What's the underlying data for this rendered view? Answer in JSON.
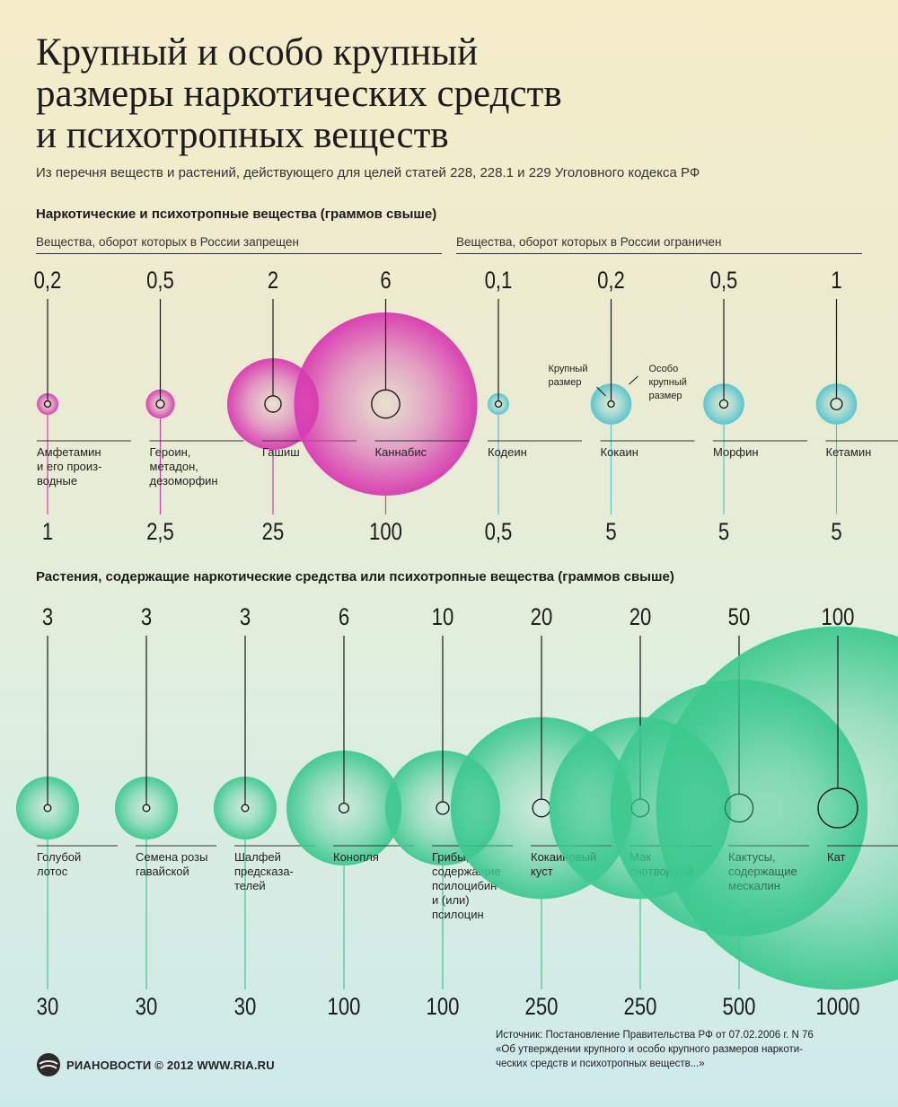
{
  "title_lines": [
    "Крупный и особо крупный",
    "размеры наркотических средств",
    "и психотропных веществ"
  ],
  "subtitle": "Из перечня веществ и растений, действующего для целей статей 228, 228.1 и 229 Уголовного кодекса РФ",
  "section1": {
    "heading": "Наркотические и психотропные вещества (граммов свыше)",
    "group_banned": "Вещества, оборот которых в России запрещен",
    "group_restricted": "Вещества, оборот которых в России ограничен"
  },
  "section2": {
    "heading": "Растения, содержащие наркотические средства или психотропные вещества (граммов свыше)"
  },
  "legend": {
    "large": [
      "Крупный",
      "размер"
    ],
    "especially_large": [
      "Особо",
      "крупный",
      "размер"
    ]
  },
  "colors": {
    "banned": "#d83ab0",
    "restricted": "#52c4cf",
    "plants": "#3dc98f"
  },
  "chart_data": [
    {
      "type": "bubble",
      "title": "Наркотические и психотропные вещества (граммов свыше)",
      "groups": [
        {
          "name": "Вещества, оборот которых в России запрещен",
          "color": "#d83ab0"
        },
        {
          "name": "Вещества, оборот которых в России ограничен",
          "color": "#52c4cf"
        }
      ],
      "items": [
        {
          "name": [
            "Амфетамин",
            "и его произ-",
            "водные"
          ],
          "large": "0,2",
          "especially_large": "1",
          "large_value": 0.2,
          "especially_large_value": 1,
          "group": 0
        },
        {
          "name": [
            "Героин,",
            "метадон,",
            "дезоморфин"
          ],
          "large": "0,5",
          "especially_large": "2,5",
          "large_value": 0.5,
          "especially_large_value": 2.5,
          "group": 0
        },
        {
          "name": [
            "Гашиш"
          ],
          "large": "2",
          "especially_large": "25",
          "large_value": 2,
          "especially_large_value": 25,
          "group": 0
        },
        {
          "name": [
            "Каннабис"
          ],
          "large": "6",
          "especially_large": "100",
          "large_value": 6,
          "especially_large_value": 100,
          "group": 0
        },
        {
          "name": [
            "Кодеин"
          ],
          "large": "0,1",
          "especially_large": "0,5",
          "large_value": 0.1,
          "especially_large_value": 0.5,
          "group": 1
        },
        {
          "name": [
            "Кокаин"
          ],
          "large": "0,2",
          "especially_large": "5",
          "large_value": 0.2,
          "especially_large_value": 5,
          "group": 1
        },
        {
          "name": [
            "Морфин"
          ],
          "large": "0,5",
          "especially_large": "5",
          "large_value": 0.5,
          "especially_large_value": 5,
          "group": 1
        },
        {
          "name": [
            "Кетамин"
          ],
          "large": "1",
          "especially_large": "5",
          "large_value": 1,
          "especially_large_value": 5,
          "group": 1
        }
      ]
    },
    {
      "type": "bubble",
      "title": "Растения, содержащие наркотические средства или психотропные вещества (граммов свыше)",
      "items": [
        {
          "name": [
            "Голубой",
            "лотос"
          ],
          "large": "3",
          "especially_large": "30",
          "large_value": 3,
          "especially_large_value": 30
        },
        {
          "name": [
            "Семена розы",
            "гавайской"
          ],
          "large": "3",
          "especially_large": "30",
          "large_value": 3,
          "especially_large_value": 30
        },
        {
          "name": [
            "Шалфей",
            "предсказа-",
            "телей"
          ],
          "large": "3",
          "especially_large": "30",
          "large_value": 3,
          "especially_large_value": 30
        },
        {
          "name": [
            "Конопля"
          ],
          "large": "6",
          "especially_large": "100",
          "large_value": 6,
          "especially_large_value": 100
        },
        {
          "name": [
            "Грибы,",
            "содержащие",
            "псилоцибин",
            "и (или)",
            "псилоцин"
          ],
          "large": "10",
          "especially_large": "100",
          "large_value": 10,
          "especially_large_value": 100
        },
        {
          "name": [
            "Кокаиновый",
            "куст"
          ],
          "large": "20",
          "especially_large": "250",
          "large_value": 20,
          "especially_large_value": 250
        },
        {
          "name": [
            "Мак",
            "снотворный"
          ],
          "large": "20",
          "especially_large": "250",
          "large_value": 20,
          "especially_large_value": 250
        },
        {
          "name": [
            "Кактусы,",
            "содержащие",
            "мескалин"
          ],
          "large": "50",
          "especially_large": "500",
          "large_value": 50,
          "especially_large_value": 500
        },
        {
          "name": [
            "Кат"
          ],
          "large": "100",
          "especially_large": "1000",
          "large_value": 100,
          "especially_large_value": 1000
        }
      ]
    }
  ],
  "footer": {
    "source_lines": [
      "Источник: Постановление Правительства РФ от 07.02.2006 г. N 76",
      "«Об утверждении крупного и особо крупного размеров наркоти-",
      "ческих средств и психотропных веществ...»"
    ],
    "logo_text": "РИАНОВОСТИ © 2012 WWW.RIA.RU"
  }
}
